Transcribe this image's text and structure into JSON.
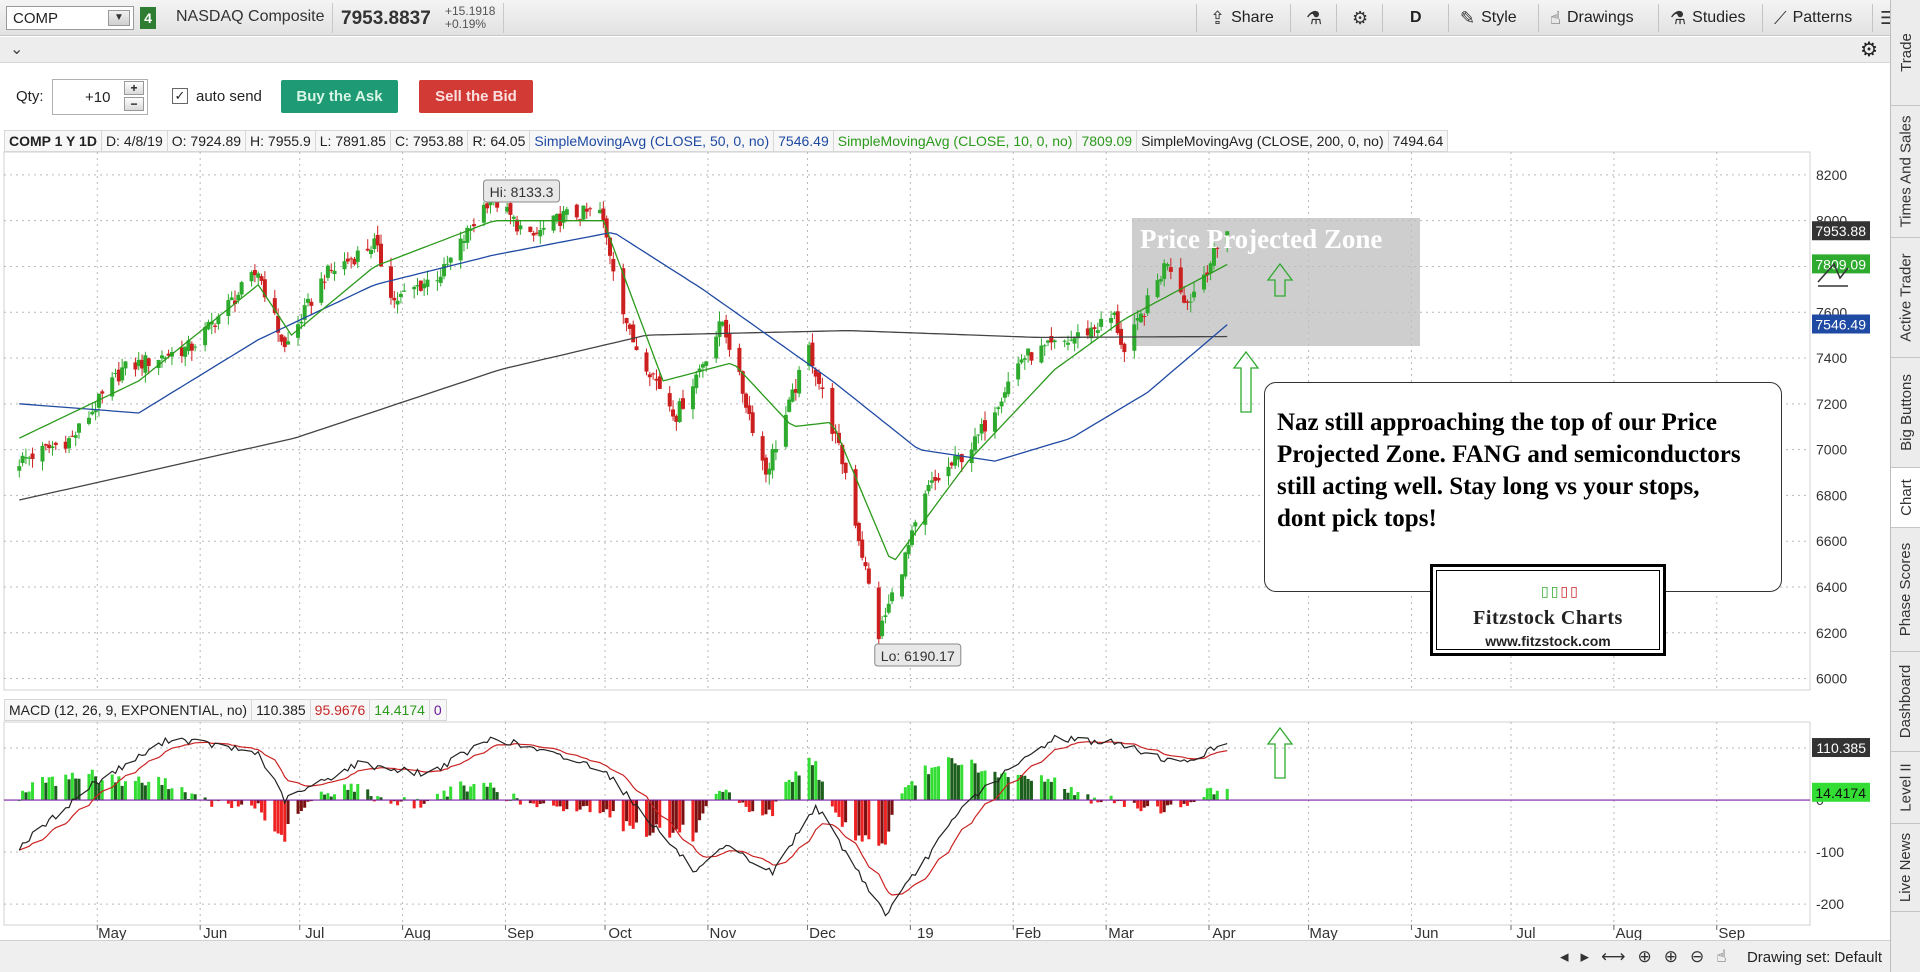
{
  "topbar": {
    "symbol": "COMP",
    "link_number": "4",
    "symbol_name": "NASDAQ Composite",
    "last_price": "7953.8837",
    "net_change": "+15.1918",
    "pct_change": "+0.19%",
    "share_label": "Share",
    "timeframe": "D",
    "style_label": "Style",
    "drawings_label": "Drawings",
    "studies_label": "Studies",
    "patterns_label": "Patterns"
  },
  "order": {
    "qty_label": "Qty:",
    "qty_value": "+10",
    "auto_send_label": "auto send",
    "buy_label": "Buy the Ask",
    "sell_label": "Sell the Bid"
  },
  "study_header": {
    "symbol_period": "COMP 1 Y 1D",
    "date": "D: 4/8/19",
    "open": "O: 7924.89",
    "high": "H: 7955.9",
    "low": "L: 7891.85",
    "close": "C: 7953.88",
    "range": "R: 64.05",
    "sma50_label": "SimpleMovingAvg (CLOSE, 50, 0, no)",
    "sma50_value": "7546.49",
    "sma10_label": "SimpleMovingAvg (CLOSE, 10, 0, no)",
    "sma10_value": "7809.09",
    "sma200_label": "SimpleMovingAvg (CLOSE, 200, 0, no)",
    "sma200_value": "7494.64"
  },
  "macd_header": {
    "label": "MACD (12, 26, 9, EXPONENTIAL, no)",
    "value": "110.385",
    "avg": "95.9676",
    "diff": "14.4174",
    "zero": "0"
  },
  "chart_data": {
    "type": "line",
    "price_axis": {
      "ticks": [
        "8200",
        "8000",
        "7800",
        "7600",
        "7400",
        "7200",
        "7000",
        "6800",
        "6600",
        "6400",
        "6200",
        "6000"
      ],
      "ylim": [
        5950,
        8300
      ]
    },
    "macd_axis": {
      "ticks": [
        "100",
        "0",
        "-100",
        "-200"
      ],
      "ylim": [
        -240,
        150
      ]
    },
    "x_ticks": [
      "May",
      "Jun",
      "Jul",
      "Aug",
      "Sep",
      "Oct",
      "Nov",
      "Dec",
      "19",
      "Feb",
      "Mar",
      "Apr",
      "May",
      "Jun",
      "Jul",
      "Aug",
      "Sep"
    ],
    "price_labels": {
      "last": "7953.88",
      "sma10": "7809.09",
      "sma50": "7546.49",
      "macd": "110.385",
      "macd_diff": "14.4174"
    },
    "annotations": {
      "hi": "Hi: 8133.3",
      "lo": "Lo: 6190.17",
      "zone": "Price Projected Zone"
    },
    "close_anchors": [
      [
        "2018-04-09",
        6950
      ],
      [
        "2018-04-25",
        7050
      ],
      [
        "2018-05-10",
        7350
      ],
      [
        "2018-05-31",
        7450
      ],
      [
        "2018-06-20",
        7780
      ],
      [
        "2018-06-28",
        7440
      ],
      [
        "2018-07-10",
        7760
      ],
      [
        "2018-07-25",
        7900
      ],
      [
        "2018-07-31",
        7650
      ],
      [
        "2018-08-15",
        7780
      ],
      [
        "2018-08-29",
        8110
      ],
      [
        "2018-09-10",
        7920
      ],
      [
        "2018-09-20",
        8020
      ],
      [
        "2018-10-01",
        8040
      ],
      [
        "2018-10-10",
        7500
      ],
      [
        "2018-10-24",
        7150
      ],
      [
        "2018-11-07",
        7560
      ],
      [
        "2018-11-20",
        6900
      ],
      [
        "2018-12-03",
        7440
      ],
      [
        "2018-12-14",
        6900
      ],
      [
        "2018-12-24",
        6190
      ],
      [
        "2019-01-08",
        6830
      ],
      [
        "2019-01-22",
        7030
      ],
      [
        "2019-02-05",
        7400
      ],
      [
        "2019-02-20",
        7480
      ],
      [
        "2019-03-05",
        7580
      ],
      [
        "2019-03-08",
        7420
      ],
      [
        "2019-03-21",
        7830
      ],
      [
        "2019-03-27",
        7640
      ],
      [
        "2019-04-08",
        7954
      ]
    ],
    "sma50_anchors": [
      [
        "2018-04-09",
        7200
      ],
      [
        "2018-05-15",
        7160
      ],
      [
        "2018-06-20",
        7480
      ],
      [
        "2018-07-25",
        7720
      ],
      [
        "2018-08-30",
        7850
      ],
      [
        "2018-10-05",
        7950
      ],
      [
        "2018-11-01",
        7700
      ],
      [
        "2018-12-10",
        7300
      ],
      [
        "2019-01-05",
        7000
      ],
      [
        "2019-01-28",
        6950
      ],
      [
        "2019-02-20",
        7050
      ],
      [
        "2019-03-15",
        7250
      ],
      [
        "2019-04-08",
        7546
      ]
    ],
    "sma10_anchors": [
      [
        "2018-04-09",
        7050
      ],
      [
        "2018-05-15",
        7300
      ],
      [
        "2018-06-20",
        7720
      ],
      [
        "2018-06-30",
        7500
      ],
      [
        "2018-07-25",
        7800
      ],
      [
        "2018-08-30",
        8000
      ],
      [
        "2018-10-02",
        8000
      ],
      [
        "2018-10-20",
        7300
      ],
      [
        "2018-11-10",
        7380
      ],
      [
        "2018-11-28",
        7100
      ],
      [
        "2018-12-10",
        7120
      ],
      [
        "2018-12-28",
        6500
      ],
      [
        "2019-01-20",
        6950
      ],
      [
        "2019-02-15",
        7350
      ],
      [
        "2019-03-08",
        7570
      ],
      [
        "2019-04-08",
        7809
      ]
    ],
    "sma200_anchors": [
      [
        "2018-04-09",
        6780
      ],
      [
        "2018-07-01",
        7050
      ],
      [
        "2018-09-01",
        7350
      ],
      [
        "2018-10-15",
        7500
      ],
      [
        "2018-12-15",
        7520
      ],
      [
        "2019-02-10",
        7490
      ],
      [
        "2019-04-08",
        7494
      ]
    ],
    "macd_anchors": [
      [
        "2018-04-09",
        -90
      ],
      [
        "2018-05-01",
        30
      ],
      [
        "2018-05-25",
        120
      ],
      [
        "2018-06-20",
        90
      ],
      [
        "2018-06-28",
        0
      ],
      [
        "2018-07-20",
        70
      ],
      [
        "2018-08-10",
        50
      ],
      [
        "2018-08-30",
        120
      ],
      [
        "2018-10-02",
        60
      ],
      [
        "2018-10-30",
        -140
      ],
      [
        "2018-11-08",
        -90
      ],
      [
        "2018-11-22",
        -140
      ],
      [
        "2018-12-05",
        -10
      ],
      [
        "2018-12-26",
        -220
      ],
      [
        "2019-01-20",
        0
      ],
      [
        "2019-02-15",
        120
      ],
      [
        "2019-03-05",
        110
      ],
      [
        "2019-03-25",
        70
      ],
      [
        "2019-04-08",
        110
      ]
    ]
  },
  "annotation_text": "Naz still approaching the top of our Price Projected Zone.  FANG and semiconductors still acting well. Stay long vs your stops, dont pick tops!",
  "logo": {
    "title": "Fitzstock Charts",
    "url": "www.fitzstock.com"
  },
  "right_rail": [
    "Trade",
    "Times And Sales",
    "Active Trader",
    "Big Buttons",
    "Chart",
    "Phase Scores",
    "Dashboard",
    "Level II",
    "Live News"
  ],
  "bottom": {
    "drawing_set": "Drawing set: Default"
  },
  "colors": {
    "sma50": "#1f4aa3",
    "sma10": "#2a9a1a",
    "sma200": "#444444",
    "bull": "#2eaa2e",
    "bear": "#cc1f1f",
    "macd_line": "#222222",
    "macd_avg": "#cc2222",
    "zero": "#7b1fa2"
  }
}
